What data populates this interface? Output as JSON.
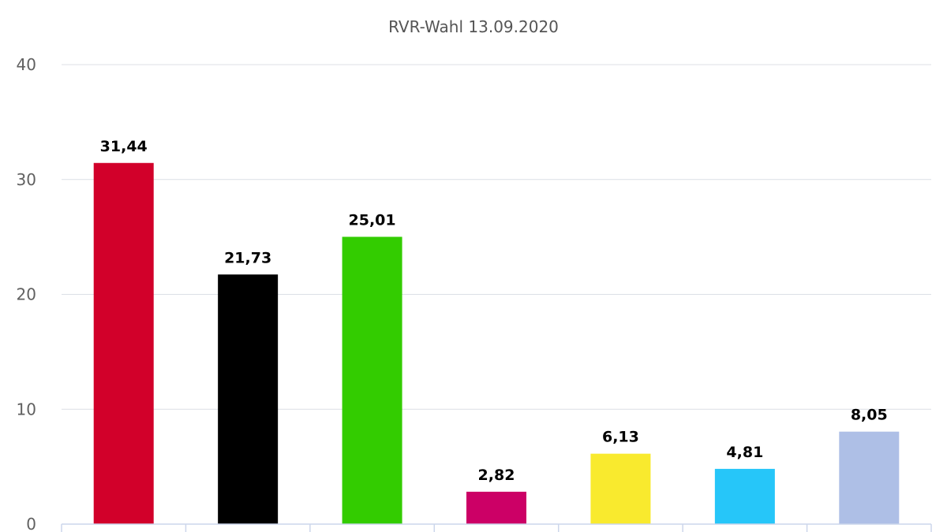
{
  "chart_data": {
    "type": "bar",
    "title": "RVR-Wahl 13.09.2020",
    "xlabel": "",
    "ylabel": "",
    "ylim": [
      0,
      40
    ],
    "yticks": [
      0,
      10,
      20,
      30,
      40
    ],
    "ytick_labels": [
      "0",
      "10",
      "20",
      "30",
      "40"
    ],
    "grid": true,
    "legend": "none",
    "values": [
      31.44,
      21.73,
      25.01,
      2.82,
      6.13,
      4.81,
      8.05
    ],
    "value_labels": [
      "31,44",
      "21,73",
      "25,01",
      "2,82",
      "6,13",
      "4,81",
      "8,05"
    ],
    "colors": [
      "#d2002a",
      "#000000",
      "#33cc00",
      "#cc0066",
      "#f9ea2e",
      "#26c6f9",
      "#aebfe6"
    ]
  }
}
